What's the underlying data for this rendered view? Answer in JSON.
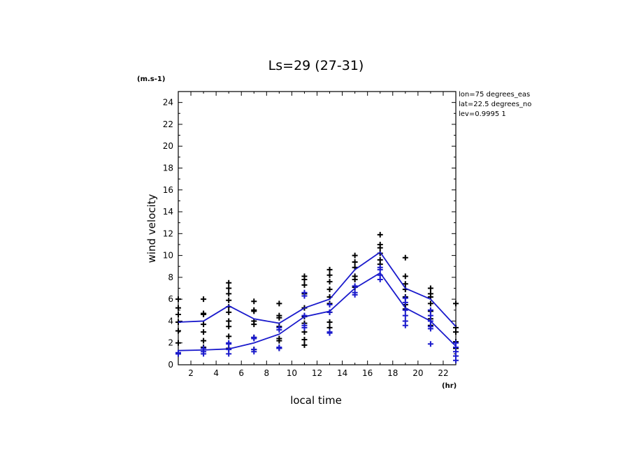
{
  "chart_data": {
    "type": "line",
    "title": "Ls=29 (27-31)",
    "xlabel": "local time",
    "ylabel": "wind velocity",
    "yunit": "(m.s-1)",
    "xunit": "(hr)",
    "xlim": [
      1,
      23
    ],
    "ylim": [
      0,
      25
    ],
    "xticks": [
      2,
      4,
      6,
      8,
      10,
      12,
      14,
      16,
      18,
      20,
      22
    ],
    "yticks": [
      0,
      2,
      4,
      6,
      8,
      10,
      12,
      14,
      16,
      18,
      20,
      22,
      24
    ],
    "info": [
      "lon=75 degrees_eas",
      "lat=22.5 degrees_no",
      "lev=0.9995 1"
    ],
    "x": [
      1,
      3,
      5,
      7,
      9,
      11,
      13,
      15,
      17,
      19,
      21,
      23
    ],
    "series": [
      {
        "color": "#1a1acc",
        "kind": "line",
        "values": [
          3.9,
          4.0,
          5.4,
          4.2,
          3.8,
          5.2,
          6.0,
          8.7,
          10.3,
          7.0,
          6.0,
          3.5
        ]
      },
      {
        "color": "#1a1acc",
        "kind": "line",
        "values": [
          1.3,
          1.35,
          1.45,
          2.0,
          2.8,
          4.4,
          4.9,
          7.0,
          8.4,
          5.2,
          4.0,
          1.7
        ]
      },
      {
        "color": "#000000",
        "kind": "scatter",
        "points": [
          [
            1,
            6.0
          ],
          [
            1,
            5.2
          ],
          [
            1,
            4.6
          ],
          [
            1,
            3.9
          ],
          [
            1,
            3.1
          ],
          [
            1,
            2.0
          ],
          [
            1,
            1.0
          ],
          [
            3,
            6.0
          ],
          [
            3,
            4.7
          ],
          [
            3,
            4.6
          ],
          [
            3,
            3.7
          ],
          [
            3,
            3.0
          ],
          [
            3,
            2.2
          ],
          [
            3,
            1.6
          ],
          [
            5,
            7.5
          ],
          [
            5,
            7.0
          ],
          [
            5,
            6.5
          ],
          [
            5,
            5.9
          ],
          [
            5,
            5.3
          ],
          [
            5,
            4.8
          ],
          [
            5,
            4.0
          ],
          [
            5,
            3.5
          ],
          [
            5,
            2.6
          ],
          [
            5,
            1.5
          ],
          [
            7,
            5.8
          ],
          [
            7,
            5.0
          ],
          [
            7,
            4.9
          ],
          [
            7,
            4.0
          ],
          [
            7,
            3.7
          ],
          [
            7,
            2.5
          ],
          [
            7,
            1.4
          ],
          [
            9,
            5.6
          ],
          [
            9,
            4.5
          ],
          [
            9,
            4.3
          ],
          [
            9,
            3.5
          ],
          [
            9,
            2.4
          ],
          [
            9,
            2.2
          ],
          [
            9,
            1.5
          ],
          [
            11,
            8.1
          ],
          [
            11,
            7.8
          ],
          [
            11,
            7.3
          ],
          [
            11,
            6.5
          ],
          [
            11,
            5.2
          ],
          [
            11,
            4.4
          ],
          [
            11,
            3.8
          ],
          [
            11,
            3.0
          ],
          [
            11,
            2.3
          ],
          [
            11,
            1.8
          ],
          [
            13,
            8.7
          ],
          [
            13,
            8.2
          ],
          [
            13,
            7.6
          ],
          [
            13,
            6.9
          ],
          [
            13,
            6.2
          ],
          [
            13,
            5.6
          ],
          [
            13,
            4.8
          ],
          [
            13,
            3.9
          ],
          [
            13,
            3.4
          ],
          [
            15,
            10.0
          ],
          [
            15,
            9.4
          ],
          [
            15,
            8.9
          ],
          [
            15,
            8.1
          ],
          [
            15,
            7.8
          ],
          [
            15,
            7.1
          ],
          [
            17,
            11.9
          ],
          [
            17,
            11.0
          ],
          [
            17,
            10.7
          ],
          [
            17,
            10.2
          ],
          [
            17,
            9.6
          ],
          [
            17,
            9.2
          ],
          [
            19,
            9.8
          ],
          [
            19,
            8.1
          ],
          [
            19,
            7.4
          ],
          [
            19,
            6.9
          ],
          [
            19,
            6.2
          ],
          [
            19,
            5.5
          ],
          [
            19,
            5.1
          ],
          [
            21,
            7.0
          ],
          [
            21,
            6.5
          ],
          [
            21,
            6.2
          ],
          [
            21,
            5.6
          ],
          [
            21,
            4.9
          ],
          [
            21,
            4.2
          ],
          [
            21,
            3.6
          ],
          [
            23,
            5.6
          ],
          [
            23,
            3.4
          ],
          [
            23,
            3.0
          ],
          [
            23,
            2.1
          ],
          [
            23,
            1.5
          ]
        ]
      },
      {
        "color": "#1a1acc",
        "kind": "scatter",
        "points": [
          [
            1,
            1.1
          ],
          [
            1,
            1.0
          ],
          [
            3,
            1.5
          ],
          [
            3,
            1.2
          ],
          [
            3,
            1.0
          ],
          [
            5,
            2.0
          ],
          [
            5,
            1.9
          ],
          [
            5,
            1.4
          ],
          [
            5,
            1.0
          ],
          [
            7,
            2.5
          ],
          [
            7,
            2.4
          ],
          [
            7,
            1.4
          ],
          [
            7,
            1.2
          ],
          [
            9,
            3.4
          ],
          [
            9,
            3.2
          ],
          [
            9,
            1.6
          ],
          [
            9,
            1.5
          ],
          [
            11,
            6.6
          ],
          [
            11,
            6.3
          ],
          [
            11,
            4.5
          ],
          [
            11,
            3.6
          ],
          [
            11,
            3.4
          ],
          [
            13,
            5.5
          ],
          [
            13,
            4.8
          ],
          [
            13,
            3.0
          ],
          [
            13,
            2.9
          ],
          [
            15,
            7.2
          ],
          [
            15,
            6.6
          ],
          [
            15,
            6.4
          ],
          [
            17,
            8.9
          ],
          [
            17,
            8.7
          ],
          [
            17,
            8.2
          ],
          [
            17,
            7.8
          ],
          [
            19,
            6.1
          ],
          [
            19,
            5.7
          ],
          [
            19,
            5.0
          ],
          [
            19,
            4.5
          ],
          [
            19,
            4.0
          ],
          [
            19,
            3.6
          ],
          [
            21,
            5.0
          ],
          [
            21,
            4.5
          ],
          [
            21,
            4.0
          ],
          [
            21,
            3.5
          ],
          [
            21,
            3.3
          ],
          [
            21,
            1.9
          ],
          [
            23,
            2.0
          ],
          [
            23,
            1.6
          ],
          [
            23,
            1.2
          ],
          [
            23,
            0.8
          ],
          [
            23,
            0.4
          ]
        ]
      }
    ]
  }
}
